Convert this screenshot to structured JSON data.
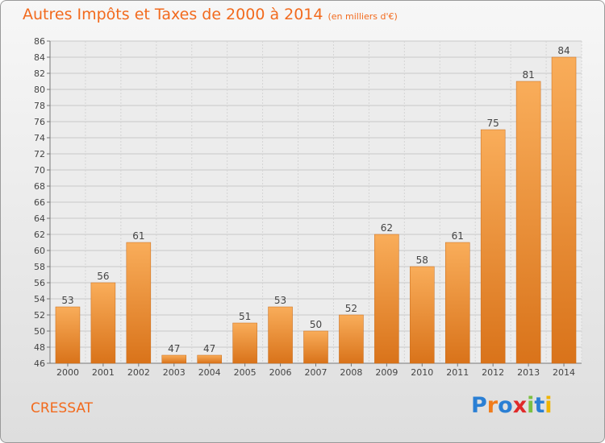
{
  "header": {
    "title": "Autres Impôts et Taxes de 2000 à 2014",
    "subtitle": "(en milliers d'€)"
  },
  "footer": {
    "commune": "CRESSAT",
    "logo_text": "Proxiti",
    "logo_colors": [
      "#2a7fd4",
      "#f07c1c",
      "#2a7fd4",
      "#e02a2a",
      "#7bc043",
      "#2a7fd4",
      "#f0b400"
    ]
  },
  "chart_data": {
    "type": "bar",
    "categories": [
      "2000",
      "2001",
      "2002",
      "2003",
      "2004",
      "2005",
      "2006",
      "2007",
      "2008",
      "2009",
      "2010",
      "2011",
      "2012",
      "2013",
      "2014"
    ],
    "values": [
      53,
      56,
      61,
      47,
      47,
      51,
      53,
      50,
      52,
      62,
      58,
      61,
      75,
      81,
      84
    ],
    "title": "Autres Impôts et Taxes de 2000 à 2014",
    "xlabel": "",
    "ylabel": "",
    "ylim": [
      46,
      86
    ],
    "yticks": [
      46,
      48,
      50,
      52,
      54,
      56,
      58,
      60,
      62,
      64,
      66,
      68,
      70,
      72,
      74,
      76,
      78,
      80,
      82,
      84,
      86
    ],
    "grid": true,
    "bar_color": "#f08a28",
    "bar_color_light": "#f9ad5a",
    "bar_color_dark": "#d9731a"
  }
}
